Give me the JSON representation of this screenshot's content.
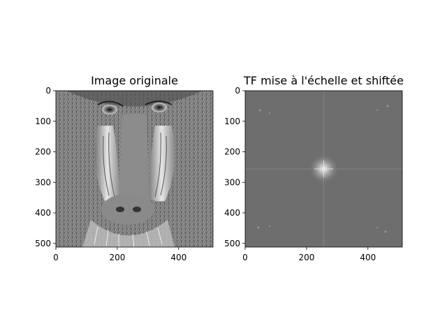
{
  "chart_data": [
    {
      "type": "heatmap",
      "title": "Image originale",
      "xlabel": "",
      "ylabel": "",
      "xlim": [
        0,
        512
      ],
      "ylim": [
        512,
        0
      ],
      "x_ticks": [
        0,
        200,
        400
      ],
      "y_ticks": [
        0,
        100,
        200,
        300,
        400,
        500
      ],
      "colormap": "gray",
      "grid": false,
      "subject": "mandrill-face-grayscale"
    },
    {
      "type": "heatmap",
      "title": "TF mise à l'échelle et shiftée",
      "xlabel": "",
      "ylabel": "",
      "xlim": [
        0,
        512
      ],
      "ylim": [
        512,
        0
      ],
      "x_ticks": [
        0,
        200,
        400
      ],
      "y_ticks": [
        0,
        100,
        200,
        300,
        400,
        500
      ],
      "colormap": "gray",
      "grid": false,
      "subject": "log-magnitude-spectrum-centered",
      "peak_center": [
        256,
        256
      ]
    }
  ],
  "colors": {
    "spectrum_bg": "#6e6e6e",
    "spectrum_peak": "#ffffff"
  }
}
